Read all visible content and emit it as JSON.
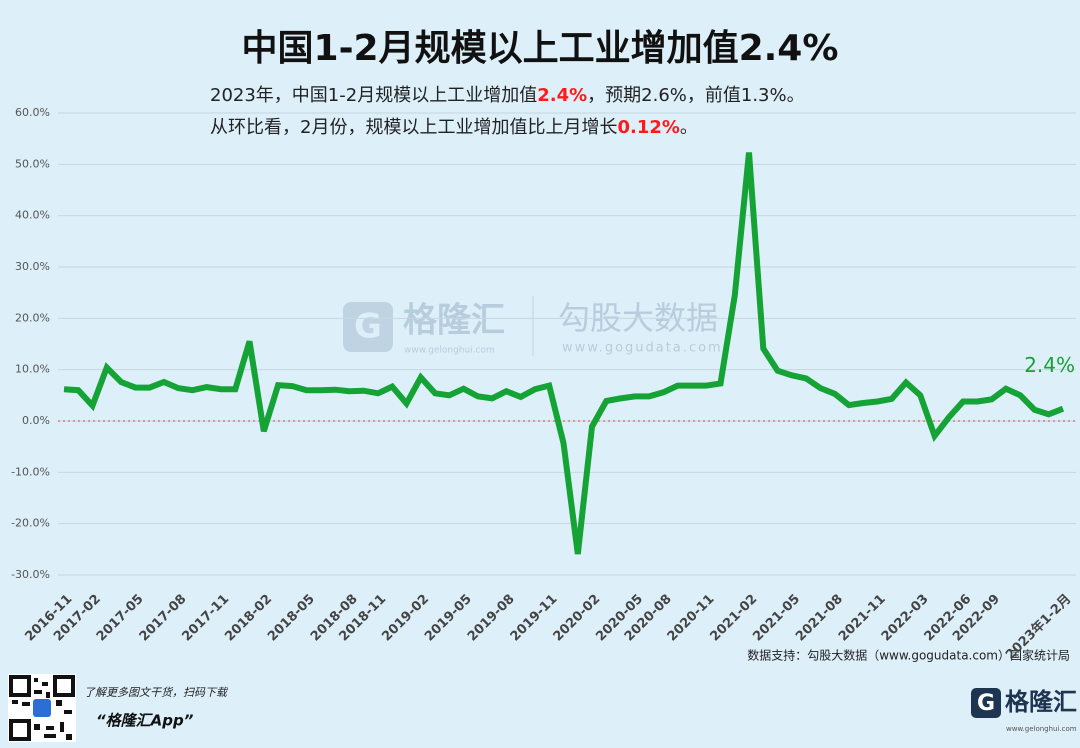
{
  "chart_data": {
    "type": "line",
    "title": "中国1-2月规模以上工业增加值2.4%",
    "subtitle": [
      [
        "2023年，中国1-2月规模以上工业增加值",
        "2.4%",
        "，预期2.6%，前值1.3%。"
      ],
      [
        "从环比看，2月份，规模以上工业增加值比上月增长",
        "0.12%",
        "。"
      ]
    ],
    "highlight_color": "#ff1a1a",
    "categories": [
      "2016-11",
      null,
      "2017-02",
      null,
      null,
      "2017-05",
      null,
      null,
      "2017-08",
      null,
      null,
      "2017-11",
      null,
      null,
      "2018-02",
      null,
      null,
      "2018-05",
      null,
      null,
      "2018-08",
      null,
      "2018-11",
      null,
      null,
      "2019-02",
      null,
      null,
      "2019-05",
      null,
      null,
      "2019-08",
      null,
      null,
      "2019-11",
      null,
      null,
      "2020-02",
      null,
      null,
      "2020-05",
      null,
      "2020-08",
      null,
      null,
      "2020-11",
      null,
      null,
      "2021-02",
      null,
      null,
      "2021-05",
      null,
      null,
      "2021-08",
      null,
      null,
      "2021-11",
      null,
      null,
      "2022-03",
      null,
      null,
      "2022-06",
      null,
      "2022-09",
      null,
      null,
      null,
      null,
      "2023年1-2月"
    ],
    "series": [
      {
        "name": "规模以上工业增加值",
        "color": "#16a336",
        "values": [
          6.2,
          6.0,
          3.0,
          10.4,
          7.6,
          6.5,
          6.5,
          7.6,
          6.4,
          6.0,
          6.6,
          6.2,
          6.2,
          15.5,
          -2.0,
          7.0,
          6.8,
          6.0,
          6.0,
          6.1,
          5.8,
          5.9,
          5.4,
          6.7,
          3.4,
          8.5,
          5.4,
          5.0,
          6.3,
          4.8,
          4.4,
          5.8,
          4.7,
          6.2,
          6.9,
          -4.3,
          -25.9,
          -1.1,
          3.9,
          4.4,
          4.8,
          4.8,
          5.6,
          6.9,
          6.9,
          6.9,
          7.3,
          24.5,
          52.3,
          14.1,
          9.8,
          8.9,
          8.3,
          6.4,
          5.3,
          3.1,
          3.5,
          3.8,
          4.3,
          7.5,
          5.0,
          -2.9,
          0.7,
          3.8,
          3.8,
          4.2,
          6.3,
          5.0,
          2.2,
          1.3,
          2.4
        ]
      }
    ],
    "end_label": "2.4%",
    "ylim": [
      -30,
      60
    ],
    "yticks": [
      {
        "value": -30,
        "label": "-30.0%"
      },
      {
        "value": -20,
        "label": "-20.0%"
      },
      {
        "value": -10,
        "label": "-10.0%"
      },
      {
        "value": 0,
        "label": "0.0%"
      },
      {
        "value": 10,
        "label": "10.0%"
      },
      {
        "value": 20,
        "label": "20.0%"
      },
      {
        "value": 30,
        "label": "30.0%"
      },
      {
        "value": 40,
        "label": "40.0%"
      },
      {
        "value": 50,
        "label": "50.0%"
      },
      {
        "value": 60,
        "label": "60.0%"
      }
    ],
    "grid": true,
    "zero_line_color": "#e04040",
    "source": "数据支持：勾股大数据（www.gogudata.com）国家统计局"
  },
  "watermark": {
    "brand": "格隆汇",
    "brand_url": "www.gelonghui.com",
    "partner": "勾股大数据",
    "partner_url": "www.gogudata.com"
  },
  "footer": {
    "promo": "了解更多图文干货，扫码下载",
    "app": "“格隆汇App”",
    "logo": "格隆汇",
    "logo_url": "www.gelonghui.com"
  }
}
